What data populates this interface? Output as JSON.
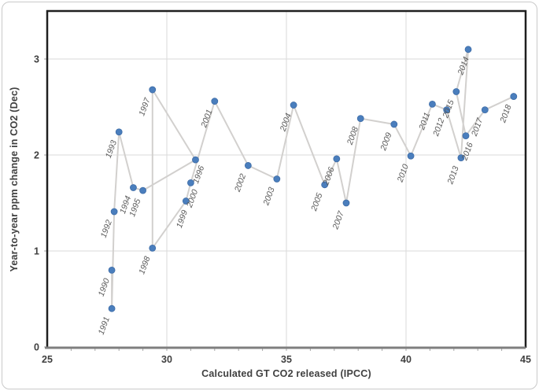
{
  "chart_data": {
    "type": "scatter",
    "title": "",
    "xlabel": "Calculated GT CO2 released (IPCC)",
    "ylabel": "Year-to-year ppm change in CO2 (Dec)",
    "xlim": [
      25,
      45
    ],
    "ylim": [
      0,
      3.5
    ],
    "x_ticks": [
      25,
      30,
      35,
      40,
      45
    ],
    "y_ticks": [
      0,
      1,
      2,
      3
    ],
    "grid": true,
    "legend": false,
    "marker_color": "#4a7ebd",
    "marker_edge_color": "#3e6ca6",
    "line_color": "#d2d0ce",
    "gridline_color": "#dadada",
    "tick_color": "#a6a6a6",
    "axis_text_color": "#404040",
    "label_color": "#595959",
    "border_color": "#1f1f1f",
    "x_axis_line_color": "#7f7f7f",
    "points": [
      {
        "year": "1990",
        "x": 27.7,
        "y": 0.8
      },
      {
        "year": "1991",
        "x": 27.7,
        "y": 0.4
      },
      {
        "year": "1992",
        "x": 27.8,
        "y": 1.41
      },
      {
        "year": "1993",
        "x": 28.0,
        "y": 2.24
      },
      {
        "year": "1994",
        "x": 28.6,
        "y": 1.66
      },
      {
        "year": "1995",
        "x": 29.0,
        "y": 1.63
      },
      {
        "year": "1996",
        "x": 31.2,
        "y": 1.95
      },
      {
        "year": "1997",
        "x": 29.4,
        "y": 2.68
      },
      {
        "year": "1998",
        "x": 29.4,
        "y": 1.03
      },
      {
        "year": "1999",
        "x": 30.8,
        "y": 1.52
      },
      {
        "year": "2000",
        "x": 31.0,
        "y": 1.71
      },
      {
        "year": "2001",
        "x": 32.0,
        "y": 2.56
      },
      {
        "year": "2002",
        "x": 33.4,
        "y": 1.89
      },
      {
        "year": "2003",
        "x": 34.6,
        "y": 1.75
      },
      {
        "year": "2004",
        "x": 35.3,
        "y": 2.52
      },
      {
        "year": "2005",
        "x": 36.6,
        "y": 1.69
      },
      {
        "year": "2006",
        "x": 37.1,
        "y": 1.96
      },
      {
        "year": "2007",
        "x": 37.5,
        "y": 1.5
      },
      {
        "year": "2008",
        "x": 38.1,
        "y": 2.38
      },
      {
        "year": "2009",
        "x": 39.5,
        "y": 2.32
      },
      {
        "year": "2010",
        "x": 40.2,
        "y": 1.99
      },
      {
        "year": "2011",
        "x": 41.1,
        "y": 2.53
      },
      {
        "year": "2012",
        "x": 41.7,
        "y": 2.47
      },
      {
        "year": "2013",
        "x": 42.3,
        "y": 1.97
      },
      {
        "year": "2014",
        "x": 42.6,
        "y": 3.1
      },
      {
        "year": "2015",
        "x": 42.1,
        "y": 2.66
      },
      {
        "year": "2016",
        "x": 42.5,
        "y": 2.2
      },
      {
        "year": "2017",
        "x": 43.3,
        "y": 2.47
      },
      {
        "year": "2018",
        "x": 44.5,
        "y": 2.61
      }
    ]
  }
}
